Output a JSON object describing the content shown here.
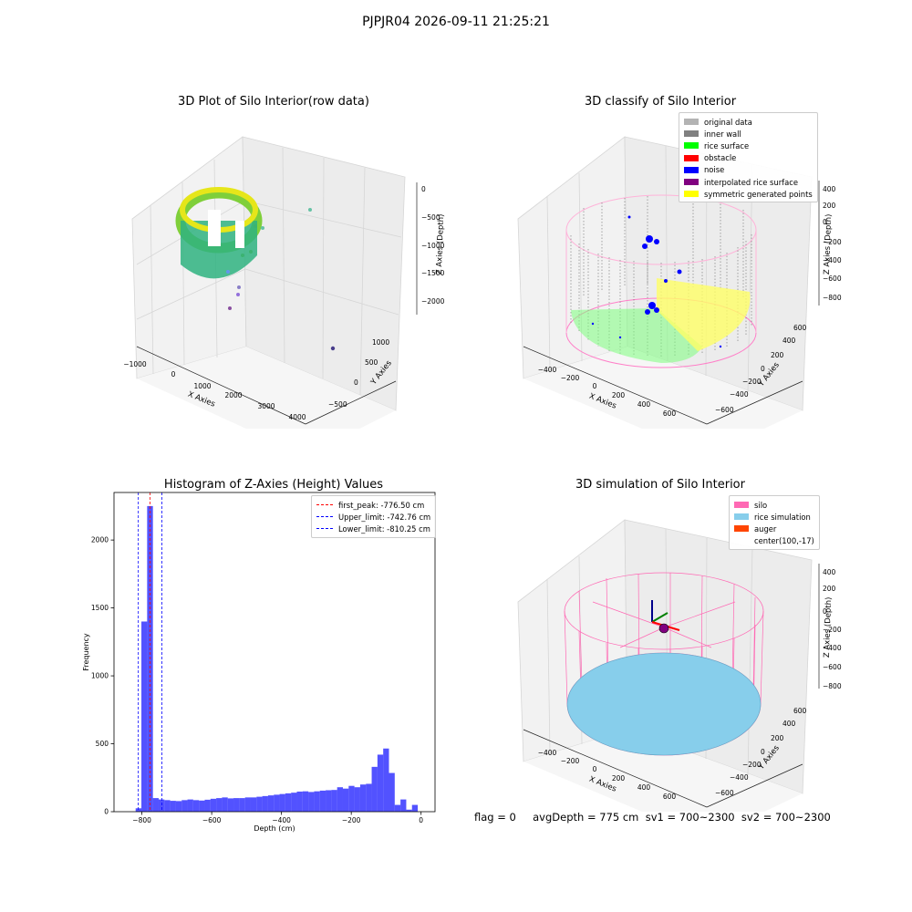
{
  "figure": {
    "title": "PJPJR04 2026-09-11 21:25:21"
  },
  "panels": {
    "raw": {
      "title": "3D Plot of Silo Interior(row data)",
      "xlabel": "X Axies",
      "ylabel": "Y Axies",
      "zlabel": "Z Axies (Depth)",
      "xticks": [
        "−1000",
        "0",
        "1000",
        "2000",
        "3000",
        "4000"
      ],
      "yticks": [
        "1000",
        "500",
        "0",
        "−500"
      ],
      "zticks": [
        "0",
        "−500",
        "−1000",
        "−1500",
        "−2000"
      ]
    },
    "classify": {
      "title": "3D classify of Silo Interior",
      "xlabel": "X Axies",
      "ylabel": "Y Axies",
      "zlabel": "Z Axies (Depth)",
      "xticks": [
        "−400",
        "−200",
        "0",
        "200",
        "400",
        "600"
      ],
      "yticks": [
        "600",
        "400",
        "200",
        "0",
        "−200",
        "−400",
        "−600"
      ],
      "zticks": [
        "400",
        "200",
        "0",
        "−200",
        "−400",
        "−600",
        "−800"
      ],
      "legend": [
        {
          "label": "original data",
          "color": "#b3b3b3"
        },
        {
          "label": "inner wall",
          "color": "#808080"
        },
        {
          "label": "rice surface",
          "color": "#00ff00"
        },
        {
          "label": "obstacle",
          "color": "#ff0000"
        },
        {
          "label": "noise",
          "color": "#0000ff"
        },
        {
          "label": "interpolated rice surface",
          "color": "#800080"
        },
        {
          "label": "symmetric generated points",
          "color": "#ffff00"
        }
      ]
    },
    "histogram": {
      "title": "Histogram of Z-Axies (Height) Values",
      "xlabel": "Depth (cm)",
      "ylabel": "Frequency",
      "legend": [
        {
          "label": "first_peak: -776.50 cm",
          "color": "#ff0000"
        },
        {
          "label": "Upper_limit: -742.76 cm",
          "color": "#0000ff"
        },
        {
          "label": "Lower_limit: -810.25 cm",
          "color": "#0000ff"
        }
      ]
    },
    "simulation": {
      "title": "3D simulation of Silo Interior",
      "xlabel": "X Axies",
      "ylabel": "Y Axies",
      "zlabel": "Z Axies (Depth)",
      "xticks": [
        "−400",
        "−200",
        "0",
        "200",
        "400",
        "600"
      ],
      "yticks": [
        "600",
        "400",
        "200",
        "0",
        "−200",
        "−400",
        "−600"
      ],
      "zticks": [
        "400",
        "200",
        "0",
        "−200",
        "−400",
        "−600",
        "−800"
      ],
      "legend": [
        {
          "label": "silo",
          "color": "#ff69b4"
        },
        {
          "label": "rice simulation",
          "color": "#87ceeb"
        },
        {
          "label": "auger",
          "color": "#ff4500"
        },
        {
          "label": "center(100,-17)",
          "color": ""
        }
      ]
    }
  },
  "status": {
    "text": "flag = 0     avgDepth = 775 cm  sv1 = 700~2300  sv2 = 700~2300"
  },
  "chart_data": [
    {
      "type": "scatter",
      "title": "3D Plot of Silo Interior(row data)",
      "xlabel": "X Axies",
      "ylabel": "Y Axies",
      "zlabel": "Z Axies (Depth)"
    },
    {
      "type": "scatter",
      "title": "3D classify of Silo Interior",
      "xlabel": "X Axies",
      "ylabel": "Y Axies",
      "zlabel": "Z Axies (Depth)"
    },
    {
      "type": "bar",
      "title": "Histogram of Z-Axies (Height) Values",
      "xlabel": "Depth (cm)",
      "ylabel": "Frequency",
      "xlim": [
        -880,
        40
      ],
      "ylim": [
        0,
        2350
      ],
      "xticks": [
        -800,
        -600,
        -400,
        -200,
        0
      ],
      "yticks": [
        0,
        500,
        1000,
        1500,
        2000
      ],
      "bin_width": 16.5,
      "bin_starts": [
        -818,
        -801.5,
        -785,
        -768.5,
        -752,
        -735.5,
        -719,
        -702.5,
        -686,
        -669.5,
        -653,
        -636.5,
        -620,
        -603.5,
        -587,
        -570.5,
        -554,
        -537.5,
        -521,
        -504.5,
        -488,
        -471.5,
        -455,
        -438.5,
        -422,
        -405.5,
        -389,
        -372.5,
        -356,
        -339.5,
        -323,
        -306.5,
        -290,
        -273.5,
        -257,
        -240.5,
        -224,
        -207.5,
        -191,
        -174.5,
        -158,
        -141.5,
        -125,
        -108.5,
        -92,
        -75.5,
        -59,
        -42.5,
        -26,
        -9.5
      ],
      "values": [
        25,
        1400,
        2250,
        100,
        90,
        85,
        80,
        78,
        85,
        90,
        85,
        82,
        88,
        95,
        100,
        105,
        98,
        100,
        100,
        105,
        105,
        110,
        115,
        120,
        125,
        130,
        135,
        140,
        148,
        150,
        145,
        150,
        155,
        158,
        160,
        180,
        170,
        190,
        180,
        200,
        205,
        330,
        420,
        465,
        285,
        50,
        90,
        15,
        50,
        0
      ],
      "color": "#0000ff",
      "vlines": [
        {
          "name": "first_peak: -776.50 cm",
          "x": -776.5,
          "color": "#ff0000"
        },
        {
          "name": "Upper_limit: -742.76 cm",
          "x": -742.76,
          "color": "#0000ff"
        },
        {
          "name": "Lower_limit: -810.25 cm",
          "x": -810.25,
          "color": "#0000ff"
        }
      ]
    },
    {
      "type": "scatter",
      "title": "3D simulation of Silo Interior",
      "xlabel": "X Axies",
      "ylabel": "Y Axies",
      "zlabel": "Z Axies (Depth)"
    }
  ]
}
